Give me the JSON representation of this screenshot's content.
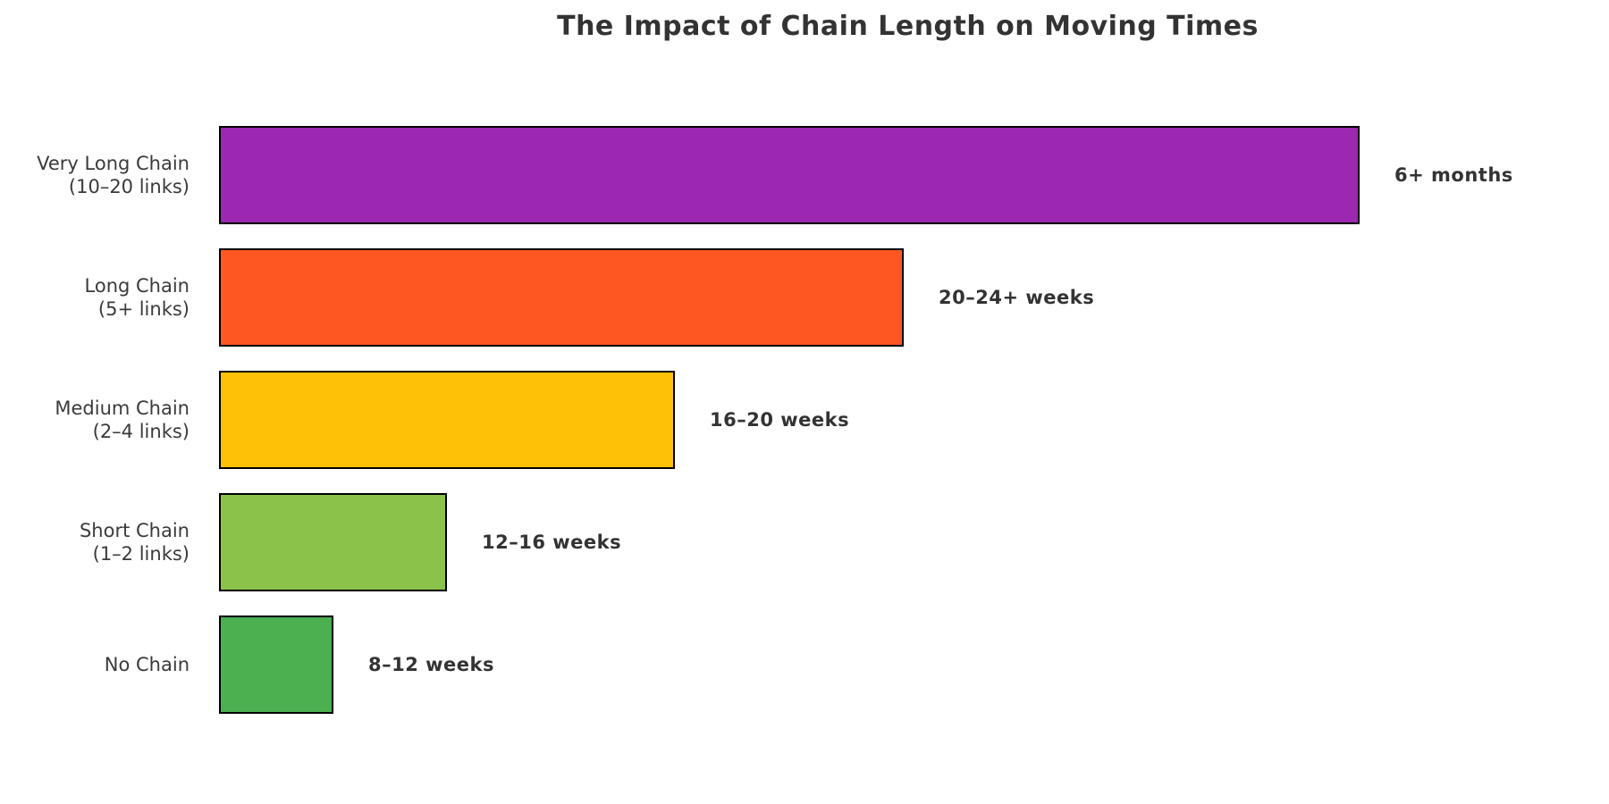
{
  "chart_data": {
    "type": "bar",
    "orientation": "horizontal",
    "title": "The Impact of Chain Length on Moving Times",
    "xlabel": "",
    "ylabel": "",
    "xlim": [
      0,
      12
    ],
    "grid": false,
    "legend": false,
    "background_color": "#ffffff",
    "bar_edge_color": "#000000",
    "text_color": "#333333",
    "categories": [
      "Very Long Chain (10–20 links)",
      "Long Chain (5+ links)",
      "Medium Chain (2–4 links)",
      "Short Chain (1–2 links)",
      "No Chain"
    ],
    "values": [
      10,
      6,
      4,
      2,
      1
    ],
    "annotations": [
      "6+ months",
      "20–24+ weeks",
      "16–20 weeks",
      "12–16 weeks",
      "8–12 weeks"
    ],
    "rows": [
      {
        "label_lines": [
          "Very Long Chain",
          "(10–20 links)"
        ],
        "value": 10,
        "annotation": "6+ months",
        "color": "#9c27b0"
      },
      {
        "label_lines": [
          "Long Chain",
          "(5+ links)"
        ],
        "value": 6,
        "annotation": "20–24+ weeks",
        "color": "#ff5722"
      },
      {
        "label_lines": [
          "Medium Chain",
          "(2–4 links)"
        ],
        "value": 4,
        "annotation": "16–20 weeks",
        "color": "#ffc107"
      },
      {
        "label_lines": [
          "Short Chain",
          "(1–2 links)"
        ],
        "value": 2,
        "annotation": "12–16 weeks",
        "color": "#8bc34a"
      },
      {
        "label_lines": [
          "No Chain"
        ],
        "value": 1,
        "annotation": "8–12 weeks",
        "color": "#4caf50"
      }
    ]
  }
}
